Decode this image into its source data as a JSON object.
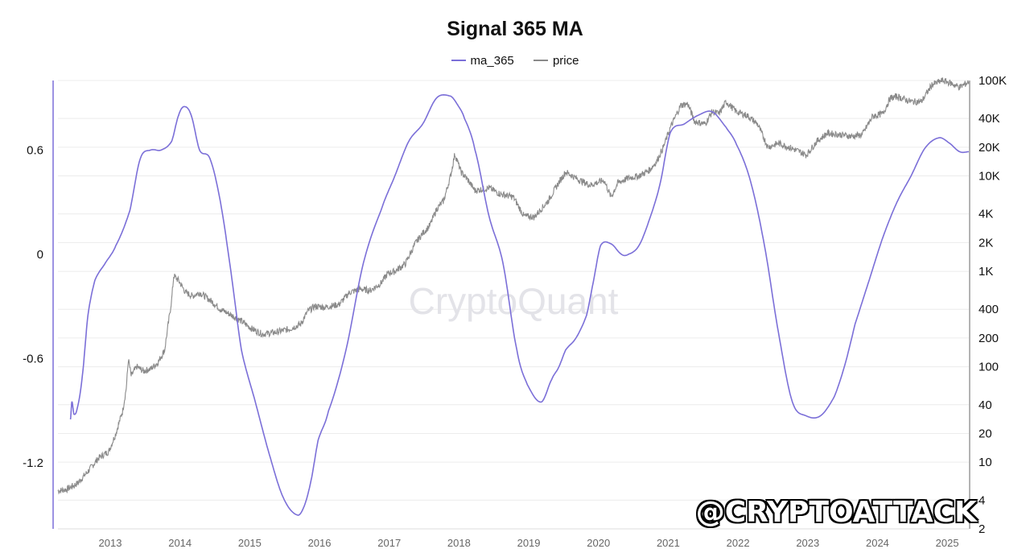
{
  "watermark": "CryptoQuant",
  "handle_watermark": "@CRYPTOATTACK",
  "colors": {
    "ma": "#7b6fd8",
    "price": "#8a8a8a",
    "grid": "#ececec",
    "axis": "#9a9a9a"
  },
  "chart_data": {
    "type": "line",
    "title": "Signal 365 MA",
    "legend": [
      "ma_365",
      "price"
    ],
    "legend_position": "top-center",
    "grid": true,
    "x_ticks": [
      "2013",
      "2014",
      "2015",
      "2016",
      "2017",
      "2018",
      "2019",
      "2020",
      "2021",
      "2022",
      "2023",
      "2024",
      "2025"
    ],
    "x_range": [
      2012.27,
      2025.33
    ],
    "y_left": {
      "ticks": [
        -1.2,
        -0.6,
        0,
        0.6
      ],
      "tick_labels": [
        "-1.2",
        "-0.6",
        "0",
        "0.6"
      ],
      "range": [
        -1.58,
        1.0
      ]
    },
    "y_right": {
      "scale": "log",
      "ticks": [
        2,
        4,
        10,
        20,
        40,
        100,
        200,
        400,
        1000,
        2000,
        4000,
        10000,
        20000,
        40000,
        100000
      ],
      "tick_labels": [
        "2",
        "4",
        "10",
        "20",
        "40",
        "100",
        "200",
        "400",
        "1K",
        "2K",
        "4K",
        "10K",
        "20K",
        "40K",
        "100K"
      ],
      "range": [
        2,
        100000
      ]
    },
    "series": [
      {
        "name": "ma_365",
        "axis": "left",
        "x": [
          2012.45,
          2012.47,
          2012.5,
          2012.55,
          2012.62,
          2012.7,
          2012.8,
          2012.95,
          2013.1,
          2013.3,
          2013.45,
          2013.6,
          2013.75,
          2013.9,
          2014.0,
          2014.08,
          2014.18,
          2014.3,
          2014.45,
          2014.6,
          2014.75,
          2014.9,
          2015.1,
          2015.3,
          2015.5,
          2015.7,
          2015.8,
          2015.9,
          2016.0,
          2016.15,
          2016.4,
          2016.65,
          2016.9,
          2017.1,
          2017.3,
          2017.5,
          2017.7,
          2017.9,
          2018.0,
          2018.1,
          2018.25,
          2018.45,
          2018.65,
          2018.85,
          2019.0,
          2019.2,
          2019.35,
          2019.45,
          2019.55,
          2019.7,
          2019.85,
          2019.95,
          2020.05,
          2020.2,
          2020.35,
          2020.45,
          2020.6,
          2020.75,
          2020.9,
          2021.05,
          2021.25,
          2021.45,
          2021.65,
          2021.85,
          2022.0,
          2022.2,
          2022.4,
          2022.6,
          2022.8,
          2023.0,
          2023.2,
          2023.4,
          2023.55,
          2023.7,
          2023.9,
          2024.1,
          2024.3,
          2024.5,
          2024.7,
          2024.9,
          2025.05,
          2025.2,
          2025.33
        ],
        "y": [
          -0.95,
          -0.85,
          -0.92,
          -0.88,
          -0.7,
          -0.35,
          -0.15,
          -0.05,
          0.05,
          0.25,
          0.55,
          0.6,
          0.6,
          0.65,
          0.8,
          0.85,
          0.8,
          0.6,
          0.55,
          0.3,
          -0.1,
          -0.55,
          -0.85,
          -1.15,
          -1.4,
          -1.5,
          -1.45,
          -1.3,
          -1.07,
          -0.9,
          -0.55,
          -0.05,
          0.25,
          0.45,
          0.65,
          0.75,
          0.9,
          0.91,
          0.86,
          0.78,
          0.6,
          0.22,
          -0.05,
          -0.55,
          -0.75,
          -0.85,
          -0.72,
          -0.65,
          -0.55,
          -0.48,
          -0.35,
          -0.15,
          0.05,
          0.06,
          0.0,
          0.0,
          0.05,
          0.2,
          0.4,
          0.7,
          0.75,
          0.8,
          0.82,
          0.73,
          0.63,
          0.42,
          0.05,
          -0.45,
          -0.85,
          -0.93,
          -0.93,
          -0.82,
          -0.64,
          -0.4,
          -0.15,
          0.1,
          0.3,
          0.45,
          0.61,
          0.67,
          0.64,
          0.59,
          0.59
        ]
      },
      {
        "name": "price",
        "axis": "right",
        "x": [
          2012.27,
          2012.4,
          2012.55,
          2012.7,
          2012.85,
          2013.0,
          2013.1,
          2013.2,
          2013.25,
          2013.28,
          2013.32,
          2013.4,
          2013.5,
          2013.6,
          2013.7,
          2013.8,
          2013.9,
          2013.93,
          2014.0,
          2014.1,
          2014.2,
          2014.3,
          2014.45,
          2014.6,
          2014.75,
          2014.9,
          2015.05,
          2015.2,
          2015.4,
          2015.6,
          2015.75,
          2015.85,
          2015.95,
          2016.1,
          2016.3,
          2016.45,
          2016.6,
          2016.75,
          2016.9,
          2017.0,
          2017.1,
          2017.25,
          2017.4,
          2017.5,
          2017.6,
          2017.7,
          2017.8,
          2017.9,
          2017.96,
          2018.05,
          2018.15,
          2018.25,
          2018.45,
          2018.6,
          2018.8,
          2018.95,
          2019.1,
          2019.3,
          2019.45,
          2019.55,
          2019.75,
          2019.9,
          2020.1,
          2020.2,
          2020.3,
          2020.45,
          2020.6,
          2020.75,
          2020.85,
          2020.95,
          2021.05,
          2021.2,
          2021.3,
          2021.4,
          2021.55,
          2021.65,
          2021.75,
          2021.85,
          2022.0,
          2022.15,
          2022.3,
          2022.45,
          2022.6,
          2022.75,
          2022.9,
          2023.0,
          2023.15,
          2023.3,
          2023.5,
          2023.65,
          2023.8,
          2023.95,
          2024.1,
          2024.2,
          2024.3,
          2024.5,
          2024.65,
          2024.8,
          2024.95,
          2025.05,
          2025.2,
          2025.33
        ],
        "y": [
          5,
          5.2,
          6,
          8,
          11,
          13,
          20,
          35,
          60,
          120,
          80,
          100,
          90,
          95,
          110,
          150,
          500,
          900,
          800,
          600,
          550,
          600,
          500,
          400,
          350,
          300,
          250,
          220,
          230,
          250,
          280,
          380,
          430,
          420,
          450,
          600,
          650,
          630,
          750,
          950,
          1000,
          1200,
          2000,
          2500,
          3000,
          4500,
          5500,
          10000,
          17000,
          11000,
          9000,
          7000,
          7500,
          6500,
          6000,
          3800,
          3700,
          5500,
          8500,
          11000,
          9000,
          8000,
          9000,
          6000,
          8500,
          9500,
          10000,
          11500,
          14000,
          20000,
          32000,
          55000,
          57000,
          37000,
          35000,
          47000,
          45000,
          60000,
          47000,
          43000,
          35000,
          20000,
          22000,
          20000,
          18000,
          16500,
          23000,
          28000,
          27000,
          26000,
          27000,
          42000,
          45000,
          65000,
          68000,
          60000,
          60000,
          90000,
          100000,
          95000,
          85000,
          97000
        ]
      }
    ]
  }
}
